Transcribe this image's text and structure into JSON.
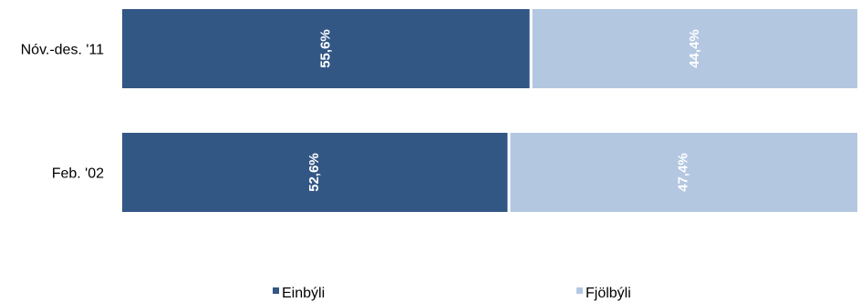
{
  "chart_data": {
    "type": "bar",
    "orientation": "horizontal",
    "stacked": "percent",
    "categories": [
      "Nóv.-des. '11",
      "Feb. '02"
    ],
    "series": [
      {
        "name": "Einbýli",
        "values": [
          55.6,
          52.6
        ],
        "labels": [
          "55,6%",
          "52,6%"
        ],
        "color": "#335785"
      },
      {
        "name": "Fjölbýli",
        "values": [
          44.4,
          47.4
        ],
        "labels": [
          "44,4%",
          "47,4%"
        ],
        "color": "#b3c7e1"
      }
    ],
    "xlim": [
      0,
      100
    ],
    "grid": false,
    "legend_position": "bottom"
  }
}
